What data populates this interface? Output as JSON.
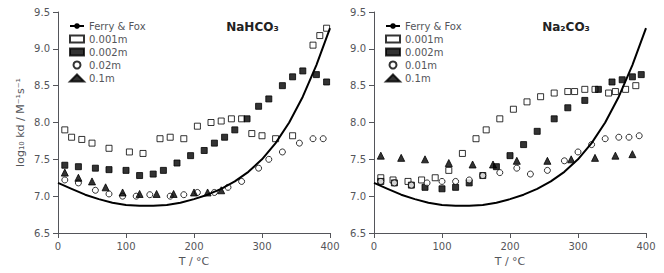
{
  "chart_data": [
    {
      "type": "scatter",
      "annotation": "NaHCO₃",
      "xlabel": "T / °C",
      "ylabel": "log₁₀ kd / M⁻¹s⁻¹",
      "xlim": [
        0,
        400
      ],
      "ylim": [
        6.5,
        9.5
      ],
      "xticks": [
        0,
        100,
        200,
        300,
        400
      ],
      "yticks": [
        6.5,
        {
          "value": 7.0,
          "label": "7.0"
        },
        7.5,
        {
          "value": 8.0,
          "label": "8.0"
        },
        8.5,
        {
          "value": 9.0,
          "label": "9.0"
        },
        9.5
      ],
      "grid": false,
      "legend": "upper left",
      "series": [
        {
          "name": "Ferry & Fox",
          "type": "line",
          "color": "#000000",
          "x": [
            0,
            20,
            40,
            60,
            80,
            100,
            120,
            140,
            160,
            180,
            200,
            220,
            240,
            260,
            280,
            300,
            320,
            340,
            360,
            380,
            400
          ],
          "values": [
            7.18,
            7.1,
            7.02,
            6.96,
            6.91,
            6.88,
            6.87,
            6.87,
            6.88,
            6.91,
            6.96,
            7.02,
            7.1,
            7.2,
            7.33,
            7.5,
            7.72,
            8.0,
            8.35,
            8.78,
            9.28
          ]
        },
        {
          "name": "0.001m",
          "type": "scatter",
          "marker": "square-open",
          "color": "#000000",
          "x": [
            10,
            20,
            35,
            50,
            75,
            105,
            125,
            150,
            165,
            185,
            205,
            225,
            240,
            255,
            270,
            285,
            300,
            320,
            345,
            375,
            385,
            395
          ],
          "values": [
            7.9,
            7.8,
            7.77,
            7.72,
            7.65,
            7.6,
            7.58,
            7.78,
            7.8,
            7.78,
            7.95,
            8.0,
            8.02,
            8.05,
            8.05,
            7.85,
            7.82,
            7.78,
            7.82,
            9.05,
            9.18,
            9.28
          ]
        },
        {
          "name": "0.002m",
          "type": "scatter",
          "marker": "square",
          "color": "#000000",
          "x": [
            10,
            30,
            55,
            75,
            100,
            120,
            140,
            155,
            175,
            195,
            215,
            230,
            245,
            260,
            278,
            295,
            310,
            330,
            345,
            360,
            380,
            395
          ],
          "values": [
            7.42,
            7.4,
            7.38,
            7.36,
            7.35,
            7.28,
            7.3,
            7.35,
            7.45,
            7.55,
            7.62,
            7.72,
            7.8,
            7.9,
            8.05,
            8.22,
            8.32,
            8.5,
            8.62,
            8.7,
            8.65,
            8.55
          ]
        },
        {
          "name": "0.02m",
          "type": "scatter",
          "marker": "circle-open",
          "color": "#000000",
          "x": [
            10,
            30,
            55,
            75,
            95,
            115,
            135,
            165,
            185,
            205,
            230,
            250,
            270,
            295,
            310,
            330,
            355,
            375,
            390
          ],
          "values": [
            7.22,
            7.18,
            7.08,
            7.03,
            7.0,
            7.0,
            7.02,
            7.0,
            7.02,
            7.05,
            7.05,
            7.12,
            7.2,
            7.38,
            7.5,
            7.6,
            7.72,
            7.78,
            7.78
          ]
        },
        {
          "name": "0.1m",
          "type": "scatter",
          "marker": "triangle",
          "color": "#000000",
          "x": [
            10,
            30,
            50,
            70,
            95,
            120,
            145,
            170,
            200,
            220,
            240
          ],
          "values": [
            7.32,
            7.25,
            7.2,
            7.12,
            7.05,
            7.03,
            7.03,
            7.03,
            7.05,
            7.05,
            7.08
          ]
        }
      ]
    },
    {
      "type": "scatter",
      "annotation": "Na₂CO₃",
      "xlabel": "T / °C",
      "xlim": [
        0,
        400
      ],
      "ylim": [
        6.5,
        9.5
      ],
      "xticks": [
        0,
        100,
        200,
        300,
        400
      ],
      "yticks": [
        6.5,
        {
          "value": 7.0,
          "label": "7.0"
        },
        7.5,
        {
          "value": 8.0,
          "label": "8.0"
        },
        8.5,
        {
          "value": 9.0,
          "label": "9.0"
        },
        9.5
      ],
      "grid": false,
      "legend": "upper left",
      "series": [
        {
          "name": "Ferry & Fox",
          "type": "line",
          "color": "#000000",
          "x": [
            0,
            20,
            40,
            60,
            80,
            100,
            120,
            140,
            160,
            180,
            200,
            220,
            240,
            260,
            280,
            300,
            320,
            340,
            360,
            380,
            400
          ],
          "values": [
            7.18,
            7.1,
            7.02,
            6.96,
            6.91,
            6.88,
            6.87,
            6.87,
            6.88,
            6.91,
            6.96,
            7.02,
            7.1,
            7.2,
            7.33,
            7.5,
            7.72,
            8.0,
            8.35,
            8.78,
            9.28
          ]
        },
        {
          "name": "0.001m",
          "type": "scatter",
          "marker": "square-open",
          "color": "#000000",
          "x": [
            10,
            28,
            50,
            70,
            90,
            110,
            130,
            150,
            165,
            185,
            205,
            225,
            245,
            265,
            285,
            295,
            310,
            325,
            345,
            355,
            370,
            385
          ],
          "values": [
            7.25,
            7.22,
            7.2,
            7.22,
            7.25,
            7.35,
            7.58,
            7.78,
            7.9,
            8.05,
            8.18,
            8.28,
            8.35,
            8.4,
            8.42,
            8.42,
            8.45,
            8.45,
            8.4,
            8.42,
            8.45,
            8.5
          ]
        },
        {
          "name": "0.002m",
          "type": "scatter",
          "marker": "square",
          "color": "#000000",
          "x": [
            10,
            30,
            55,
            75,
            100,
            120,
            140,
            160,
            180,
            200,
            220,
            240,
            265,
            285,
            310,
            330,
            350,
            365,
            380,
            393
          ],
          "values": [
            7.2,
            7.18,
            7.15,
            7.12,
            7.1,
            7.12,
            7.18,
            7.28,
            7.4,
            7.55,
            7.7,
            7.88,
            8.05,
            8.2,
            8.3,
            8.45,
            8.55,
            8.58,
            8.62,
            8.65
          ]
        },
        {
          "name": "0.01m",
          "type": "scatter",
          "marker": "circle-open",
          "color": "#000000",
          "x": [
            10,
            30,
            55,
            78,
            100,
            120,
            140,
            160,
            185,
            210,
            230,
            255,
            280,
            300,
            320,
            340,
            360,
            375,
            390
          ],
          "values": [
            7.2,
            7.18,
            7.15,
            7.18,
            7.2,
            7.2,
            7.22,
            7.28,
            7.32,
            7.38,
            7.3,
            7.35,
            7.48,
            7.6,
            7.7,
            7.78,
            7.8,
            7.8,
            7.82
          ]
        },
        {
          "name": "0.1m",
          "type": "scatter",
          "marker": "triangle",
          "color": "#000000",
          "x": [
            10,
            40,
            75,
            110,
            145,
            175,
            210,
            255,
            290,
            325,
            355,
            380
          ],
          "values": [
            7.55,
            7.52,
            7.5,
            7.45,
            7.43,
            7.43,
            7.48,
            7.48,
            7.5,
            7.52,
            7.55,
            7.57
          ]
        }
      ]
    }
  ]
}
